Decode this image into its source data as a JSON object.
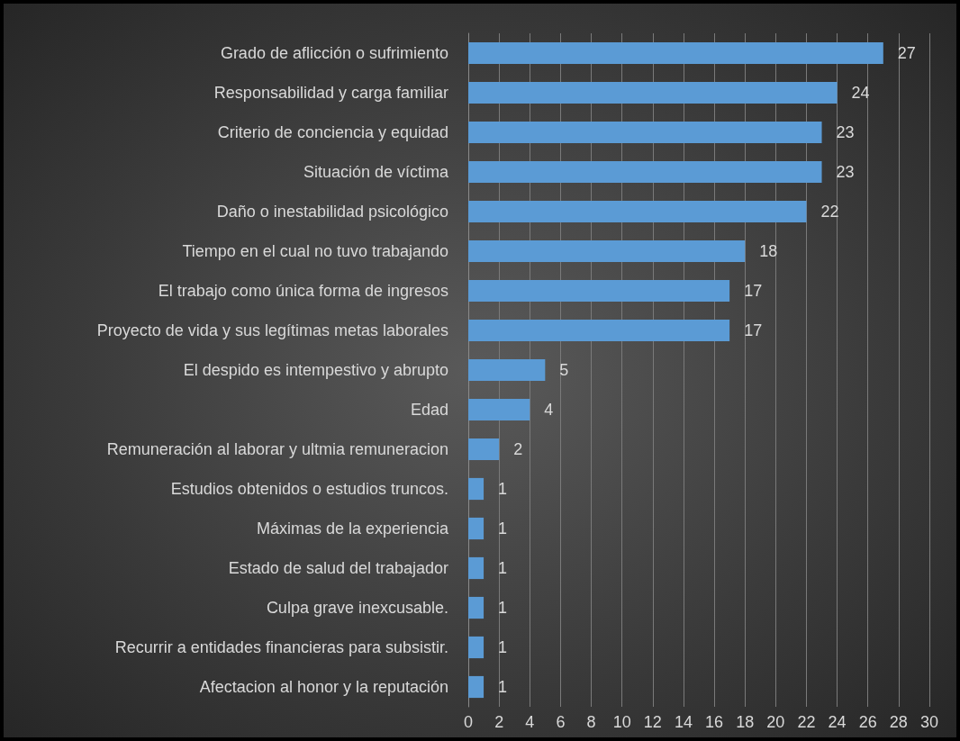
{
  "chart_data": {
    "type": "bar",
    "orientation": "horizontal",
    "categories": [
      "Grado de aflicción o sufrimiento",
      "Responsabilidad y carga familiar",
      "Criterio de conciencia y equidad",
      "Situación de víctima",
      "Daño o inestabilidad psicológico",
      "Tiempo en el cual no tuvo trabajando",
      "El trabajo como única forma de ingresos",
      "Proyecto de vida y sus legítimas metas laborales",
      "El despido es intempestivo y abrupto",
      "Edad",
      "Remuneración al laborar y ultmia remuneracion",
      "Estudios obtenidos o estudios truncos.",
      "Máximas de la experiencia",
      "Estado de salud del trabajador",
      "Culpa grave inexcusable.",
      "Recurrir a entidades financieras para subsistir.",
      "Afectacion al honor y la reputación"
    ],
    "values": [
      27,
      24,
      23,
      23,
      22,
      18,
      17,
      17,
      5,
      4,
      2,
      1,
      1,
      1,
      1,
      1,
      1
    ],
    "color": "#5b9bd5",
    "xlim": [
      0,
      30
    ],
    "xticks": [
      0,
      2,
      4,
      6,
      8,
      10,
      12,
      14,
      16,
      18,
      20,
      22,
      24,
      26,
      28,
      30
    ],
    "grid": "x",
    "data_labels": true
  }
}
